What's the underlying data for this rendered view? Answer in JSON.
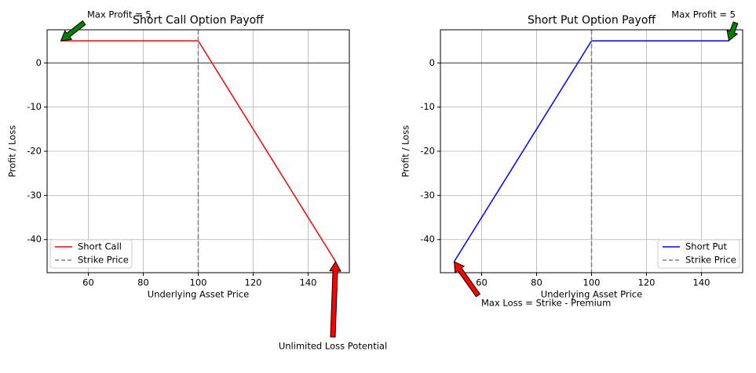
{
  "chart_data": [
    {
      "type": "line",
      "title": "Short Call Option Payoff",
      "xlabel": "Underlying Asset Price",
      "ylabel": "Profit / Loss",
      "xlim": [
        45,
        155
      ],
      "ylim": [
        -47.5,
        7.5
      ],
      "xticks": [
        60,
        80,
        100,
        120,
        140
      ],
      "yticks": [
        0,
        -10,
        -20,
        -30,
        -40
      ],
      "grid": true,
      "hline": 0,
      "legend": "lower left",
      "series": [
        {
          "name": "Short Call",
          "color": "red",
          "x": [
            50,
            100,
            150
          ],
          "values": [
            5,
            5,
            -45
          ]
        },
        {
          "name": "Strike Price",
          "color": "gray",
          "style": "dashed",
          "xline": 100
        }
      ],
      "annotations": [
        {
          "text": "Max Profit = 5",
          "xy": [
            50,
            5
          ],
          "color": "green"
        },
        {
          "text": "Unlimited Loss Potential",
          "xy": [
            150,
            -45
          ],
          "color": "red"
        }
      ]
    },
    {
      "type": "line",
      "title": "Short Put Option Payoff",
      "xlabel": "Underlying Asset Price",
      "ylabel": "Profit / Loss",
      "xlim": [
        45,
        155
      ],
      "ylim": [
        -47.5,
        7.5
      ],
      "xticks": [
        60,
        80,
        100,
        120,
        140
      ],
      "yticks": [
        0,
        -10,
        -20,
        -30,
        -40
      ],
      "grid": true,
      "hline": 0,
      "legend": "lower right",
      "series": [
        {
          "name": "Short Put",
          "color": "blue",
          "x": [
            50,
            100,
            150
          ],
          "values": [
            -45,
            5,
            5
          ]
        },
        {
          "name": "Strike Price",
          "color": "gray",
          "style": "dashed",
          "xline": 100
        }
      ],
      "annotations": [
        {
          "text": "Max Profit = 5",
          "xy": [
            150,
            5
          ],
          "color": "green"
        },
        {
          "text": "Max Loss = Strike - Premium",
          "xy": [
            50,
            -45
          ],
          "color": "red"
        }
      ]
    }
  ]
}
